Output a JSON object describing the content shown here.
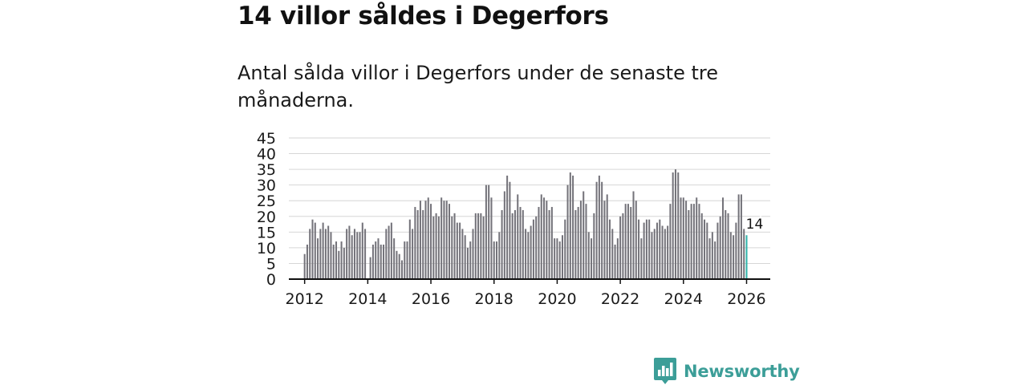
{
  "title": "14 villor såldes i Degerfors",
  "subtitle": "Antal sålda villor i Degerfors under de senaste tre månaderna.",
  "brand": {
    "name": "Newsworthy",
    "icon": "newsworthy-logo-icon",
    "color": "#3c9e98"
  },
  "colors": {
    "bar": "#74737a",
    "highlight": "#2fb3a9",
    "grid": "#d6d6d6",
    "axis": "#111111"
  },
  "chart_data": {
    "type": "bar",
    "title": "",
    "xlabel": "",
    "ylabel": "",
    "ylim": [
      0,
      45
    ],
    "yticks": [
      0,
      5,
      10,
      15,
      20,
      25,
      30,
      35,
      40,
      45
    ],
    "xticks": [
      2012,
      2014,
      2016,
      2018,
      2020,
      2022,
      2024,
      2026
    ],
    "xlim": [
      2011.5,
      2026.75
    ],
    "start": {
      "year": 2012,
      "month": 1
    },
    "highlight_label": "14",
    "values": [
      8,
      11,
      16,
      19,
      18,
      13,
      16,
      18,
      16,
      17,
      15,
      11,
      12,
      9,
      12,
      10,
      16,
      17,
      14,
      16,
      15,
      15,
      18,
      16,
      0,
      7,
      11,
      12,
      13,
      11,
      11,
      16,
      17,
      18,
      13,
      9,
      8,
      6,
      12,
      12,
      19,
      16,
      23,
      22,
      25,
      22,
      25,
      26,
      24,
      20,
      21,
      20,
      26,
      25,
      25,
      24,
      20,
      21,
      18,
      18,
      16,
      14,
      10,
      12,
      16,
      21,
      21,
      21,
      20,
      30,
      30,
      26,
      12,
      12,
      15,
      22,
      28,
      33,
      31,
      21,
      22,
      27,
      23,
      22,
      16,
      15,
      17,
      19,
      20,
      23,
      27,
      26,
      25,
      22,
      23,
      13,
      13,
      12,
      14,
      19,
      30,
      34,
      33,
      22,
      23,
      25,
      28,
      24,
      15,
      13,
      21,
      31,
      33,
      31,
      25,
      27,
      19,
      16,
      11,
      13,
      20,
      21,
      24,
      24,
      23,
      28,
      25,
      19,
      13,
      18,
      19,
      19,
      15,
      16,
      18,
      19,
      17,
      16,
      17,
      24,
      34,
      35,
      34,
      26,
      26,
      25,
      22,
      24,
      24,
      26,
      24,
      21,
      19,
      18,
      13,
      15,
      12,
      18,
      20,
      26,
      22,
      21,
      15,
      14,
      18,
      27,
      27,
      16,
      14
    ]
  }
}
